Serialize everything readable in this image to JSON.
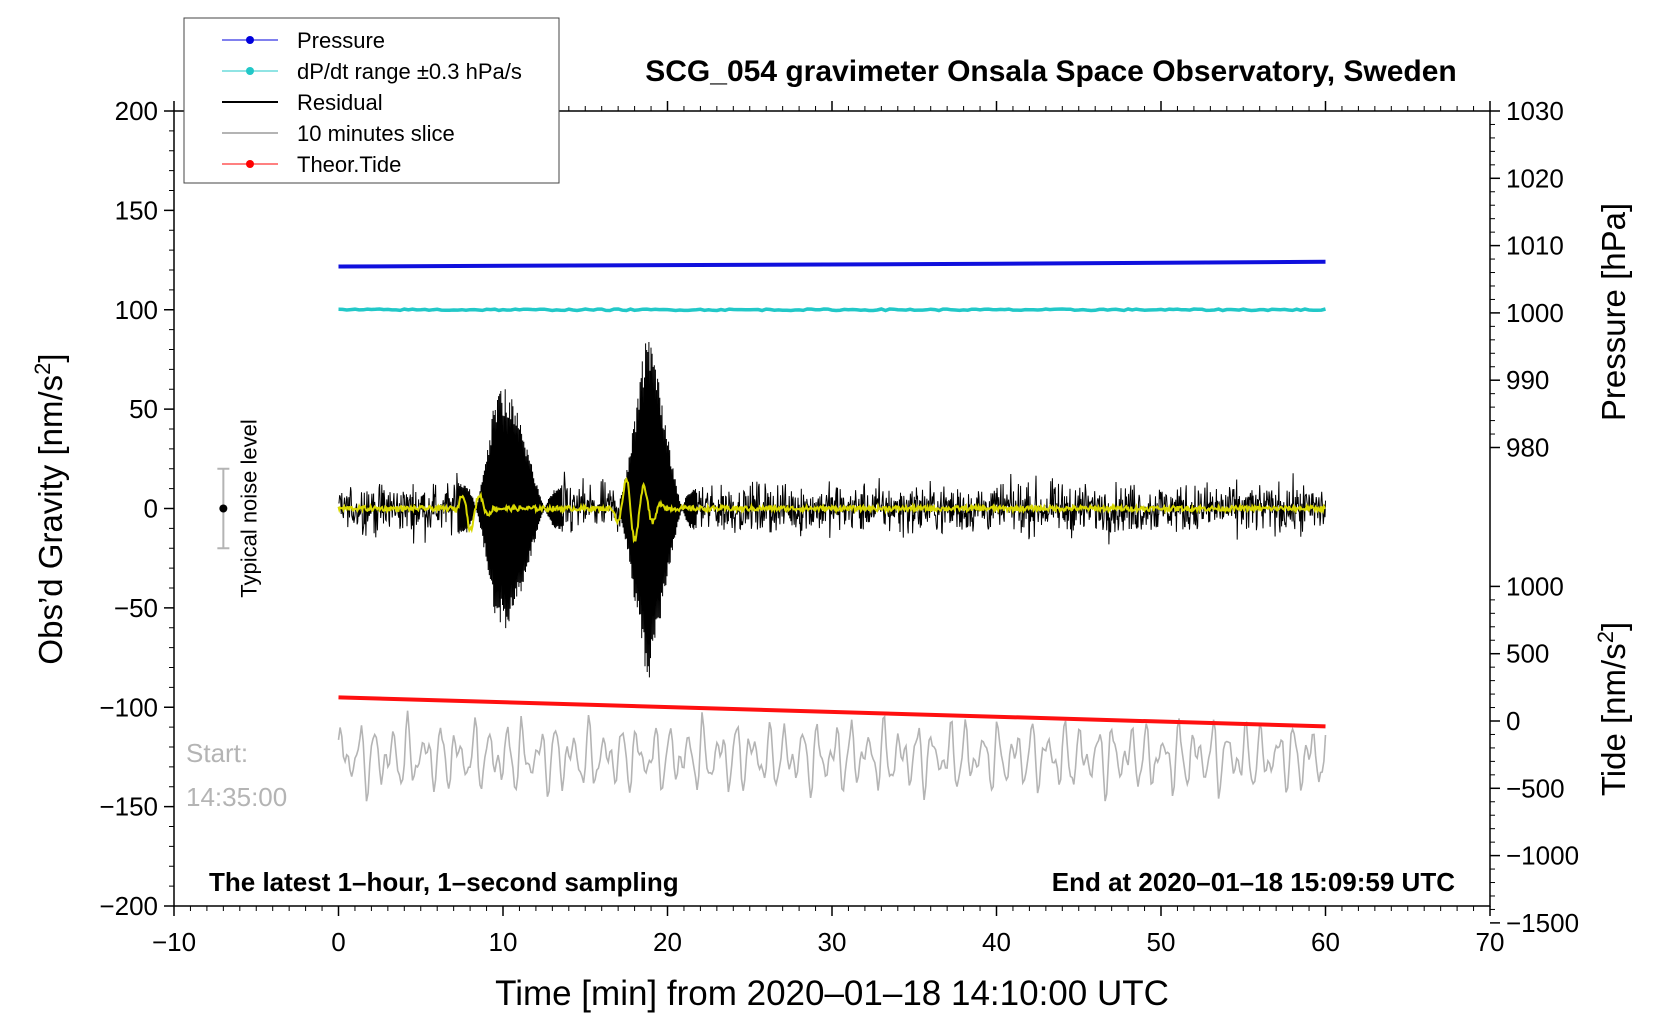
{
  "chart_data": {
    "type": "line",
    "title": "SCG_054 gravimeter Onsala Space Observatory, Sweden",
    "xlabel": "Time [min] from 2020–01–18 14:10:00 UTC",
    "ylabel_left": "Obs’d Gravity [nm/s",
    "ylabel_left_sup": "2",
    "ylabel_left_end": "]",
    "ylabel_right_pressure": "Pressure [hPa]",
    "ylabel_right_tide": "Tide [nm/s",
    "ylabel_right_tide_sup": "2",
    "ylabel_right_tide_end": "]",
    "xlim": [
      -10,
      70
    ],
    "ylim_gravity": [
      -200,
      200
    ],
    "ylim_pressure": [
      970,
      1030
    ],
    "ylim_tide": [
      -1500,
      1500
    ],
    "x_ticks": [
      -10,
      0,
      10,
      20,
      30,
      40,
      50,
      60,
      70
    ],
    "x_tick_labels": [
      "−10",
      "0",
      "10",
      "20",
      "30",
      "40",
      "50",
      "60",
      "70"
    ],
    "gravity_ticks": [
      -200,
      -150,
      -100,
      -50,
      0,
      50,
      100,
      150,
      200
    ],
    "gravity_tick_labels": [
      "−200",
      "−150",
      "−100",
      "−50",
      "0",
      "50",
      "100",
      "150",
      "200"
    ],
    "pressure_ticks": [
      980,
      990,
      1000,
      1010,
      1020,
      1030
    ],
    "pressure_tick_labels": [
      "980",
      "990",
      "1000",
      "1010",
      "1020",
      "1030"
    ],
    "tide_ticks": [
      -1500,
      -1000,
      -500,
      0,
      500,
      1000
    ],
    "tide_tick_labels": [
      "−1500",
      "−1000",
      "−500",
      "0",
      "500",
      "1000"
    ],
    "legend": {
      "placement": "top-left",
      "entries": [
        {
          "label": "Pressure",
          "color": "#0000dd",
          "marker": true
        },
        {
          "label": "dP/dt range ±0.3 hPa/s",
          "color": "#22c8c8",
          "marker": true
        },
        {
          "label": "Residual",
          "color": "#000000",
          "marker": false
        },
        {
          "label": "10 minutes slice",
          "color": "#b4b4b4",
          "marker": false
        },
        {
          "label": "Theor.Tide",
          "color": "#ff0000",
          "marker": true
        }
      ]
    },
    "series": [
      {
        "name": "Pressure",
        "axis": "pressure",
        "color": "#1010dd",
        "x": [
          0,
          20,
          40,
          60
        ],
        "values": [
          1006.9,
          1007.1,
          1007.3,
          1007.6
        ]
      },
      {
        "name": "dP/dt range ±0.3 hPa/s",
        "axis": "gravity",
        "color": "#22c8c8",
        "x": [
          0,
          60
        ],
        "values": [
          100,
          100
        ]
      },
      {
        "name": "Theor.Tide",
        "axis": "tide",
        "color": "#ff1010",
        "x": [
          0,
          60
        ],
        "values": [
          175,
          -40
        ]
      },
      {
        "name": "Residual",
        "axis": "gravity",
        "color": "#000000",
        "noise_amplitude": 20,
        "events": [
          {
            "t_start": 7,
            "t_end": 14,
            "peak": 60
          },
          {
            "t_start": 17,
            "t_end": 22,
            "peak": 80
          }
        ]
      },
      {
        "name": "Residual (smoothed)",
        "axis": "gravity",
        "color": "#d8d800",
        "events": [
          {
            "t_start": 7,
            "t_end": 9.5,
            "peak": 12
          },
          {
            "t_start": 16.5,
            "t_end": 20,
            "peak": 18
          }
        ]
      },
      {
        "name": "10 minutes slice",
        "axis": "gravity",
        "color": "#b4b4b4",
        "center": -125,
        "amplitude": 22
      }
    ],
    "annotations": {
      "noise_label": "Typical noise level",
      "noise_level": 20,
      "noise_x": -7,
      "start_label": "Start:",
      "start_time": "14:35:00",
      "bottom_left": "The latest 1–hour, 1–second sampling",
      "bottom_right": "End at 2020–01–18 15:09:59 UTC"
    }
  }
}
